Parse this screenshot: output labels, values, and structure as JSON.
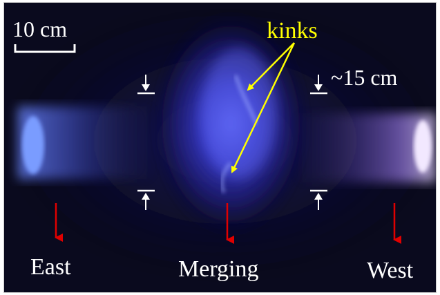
{
  "annotations": {
    "scale_bar": "10 cm",
    "kinks": "kinks",
    "gap": "~15 cm"
  },
  "regions": {
    "east": "East",
    "merging": "Merging",
    "west": "West"
  },
  "colors": {
    "background": "#0a0a1e",
    "plasma": "#4a52e8",
    "label_text": "#ffffff",
    "kinks_text": "#ffff00",
    "kinks_arrow": "#ffff00",
    "region_arrow": "#e00000",
    "gap_marker": "#ffffff"
  }
}
